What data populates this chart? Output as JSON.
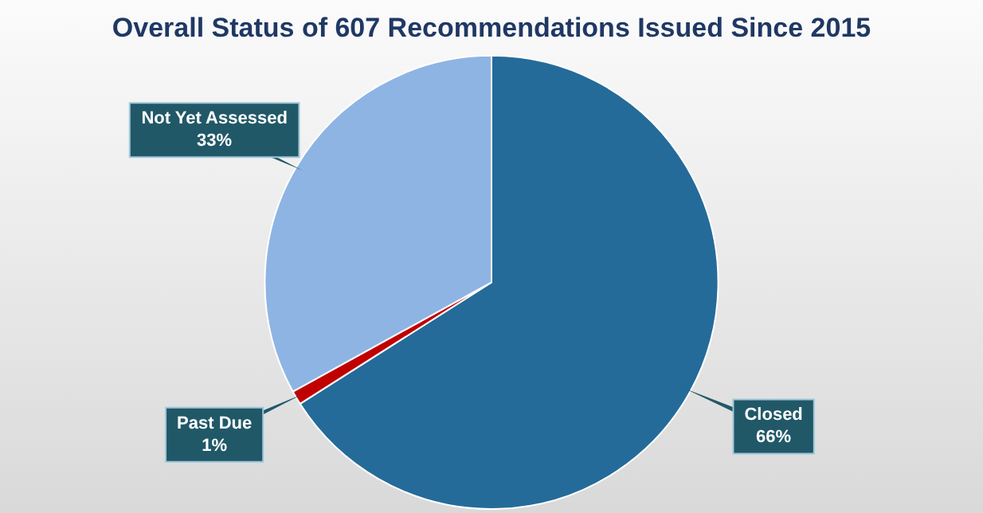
{
  "chart_data": {
    "type": "pie",
    "title": "Overall Status of 607 Recommendations Issued Since 2015",
    "categories": [
      "Closed",
      "Past Due",
      "Not Yet Assessed"
    ],
    "values": [
      66,
      1,
      33
    ],
    "colors": [
      "#246b99",
      "#c00000",
      "#8eb4e3"
    ],
    "value_labels": [
      "66%",
      "1%",
      "33%"
    ],
    "legend": false
  }
}
